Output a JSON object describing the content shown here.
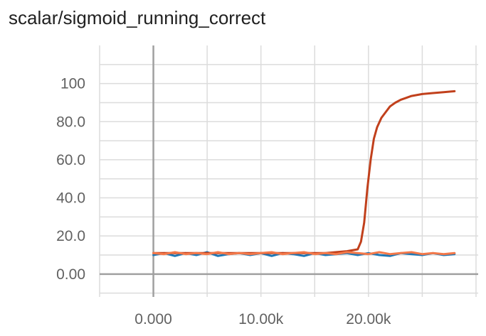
{
  "card": {
    "title": "scalar/sigmoid_running_correct"
  },
  "chart_data": {
    "type": "line",
    "title": "scalar/sigmoid_running_correct",
    "xlabel": "",
    "ylabel": "",
    "xlim": [
      -5000,
      30200
    ],
    "ylim": [
      -12,
      120
    ],
    "grid": true,
    "x_ticks": [
      {
        "value": 0,
        "label": "0.000"
      },
      {
        "value": 10000,
        "label": "10.00k"
      },
      {
        "value": 20000,
        "label": "20.00k"
      }
    ],
    "x_gridlines": [
      -5000,
      0,
      5000,
      10000,
      15000,
      20000,
      25000,
      30000
    ],
    "y_ticks": [
      {
        "value": 0,
        "label": "0.00"
      },
      {
        "value": 20,
        "label": "20.0"
      },
      {
        "value": 40,
        "label": "40.0"
      },
      {
        "value": 60,
        "label": "60.0"
      },
      {
        "value": 80,
        "label": "80.0"
      },
      {
        "value": 100,
        "label": "100"
      }
    ],
    "y_gridlines": [
      -10,
      0,
      10,
      20,
      30,
      40,
      50,
      60,
      70,
      80,
      90,
      100,
      110
    ],
    "series": [
      {
        "color": "#1f77b4",
        "x": [
          0,
          1000,
          2000,
          3000,
          4000,
          5000,
          6000,
          7000,
          8000,
          9000,
          10000,
          11000,
          12000,
          13000,
          14000,
          15000,
          16000,
          17000,
          18000,
          19000,
          20000,
          21000,
          22000,
          23000,
          24000,
          25000,
          26000,
          27000,
          28000
        ],
        "y": [
          10,
          11,
          9.5,
          11,
          10,
          11.5,
          9.5,
          10.5,
          11,
          10,
          11,
          9.5,
          11,
          10.5,
          9.5,
          11,
          10,
          10.5,
          11,
          10,
          11,
          10,
          9.5,
          11,
          10.5,
          10,
          11,
          10,
          10.5
        ]
      },
      {
        "color": "#c1401c",
        "x": [
          0,
          2000,
          4000,
          6000,
          8000,
          10000,
          12000,
          14000,
          16000,
          18000,
          19000,
          19300,
          19600,
          19900,
          20200,
          20500,
          20800,
          21200,
          21600,
          22000,
          22500,
          23000,
          23500,
          24000,
          25000,
          26000,
          27000,
          28000
        ],
        "y": [
          11,
          11,
          11,
          11,
          11,
          11,
          11,
          11,
          11,
          12,
          13,
          17,
          27,
          45,
          60,
          71,
          77,
          82,
          85,
          88,
          90,
          91.5,
          92.5,
          93.5,
          94.5,
          95,
          95.5,
          96
        ]
      },
      {
        "color": "#f4794a",
        "x": [
          0,
          1000,
          2000,
          3000,
          4000,
          5000,
          6000,
          7000,
          8000,
          9000,
          10000,
          11000,
          12000,
          13000,
          14000,
          15000,
          16000,
          17000,
          18000,
          19000,
          20000,
          21000,
          22000,
          23000,
          24000,
          25000,
          26000,
          27000,
          28000
        ],
        "y": [
          11,
          10.5,
          11.5,
          10.5,
          11,
          10.5,
          11.5,
          10.5,
          11,
          10.5,
          11,
          11.5,
          10.5,
          11,
          11.5,
          10.5,
          11,
          10.5,
          11.5,
          11,
          10.5,
          11.5,
          10.5,
          11,
          11.5,
          10.5,
          11,
          10.5,
          11
        ]
      }
    ]
  }
}
